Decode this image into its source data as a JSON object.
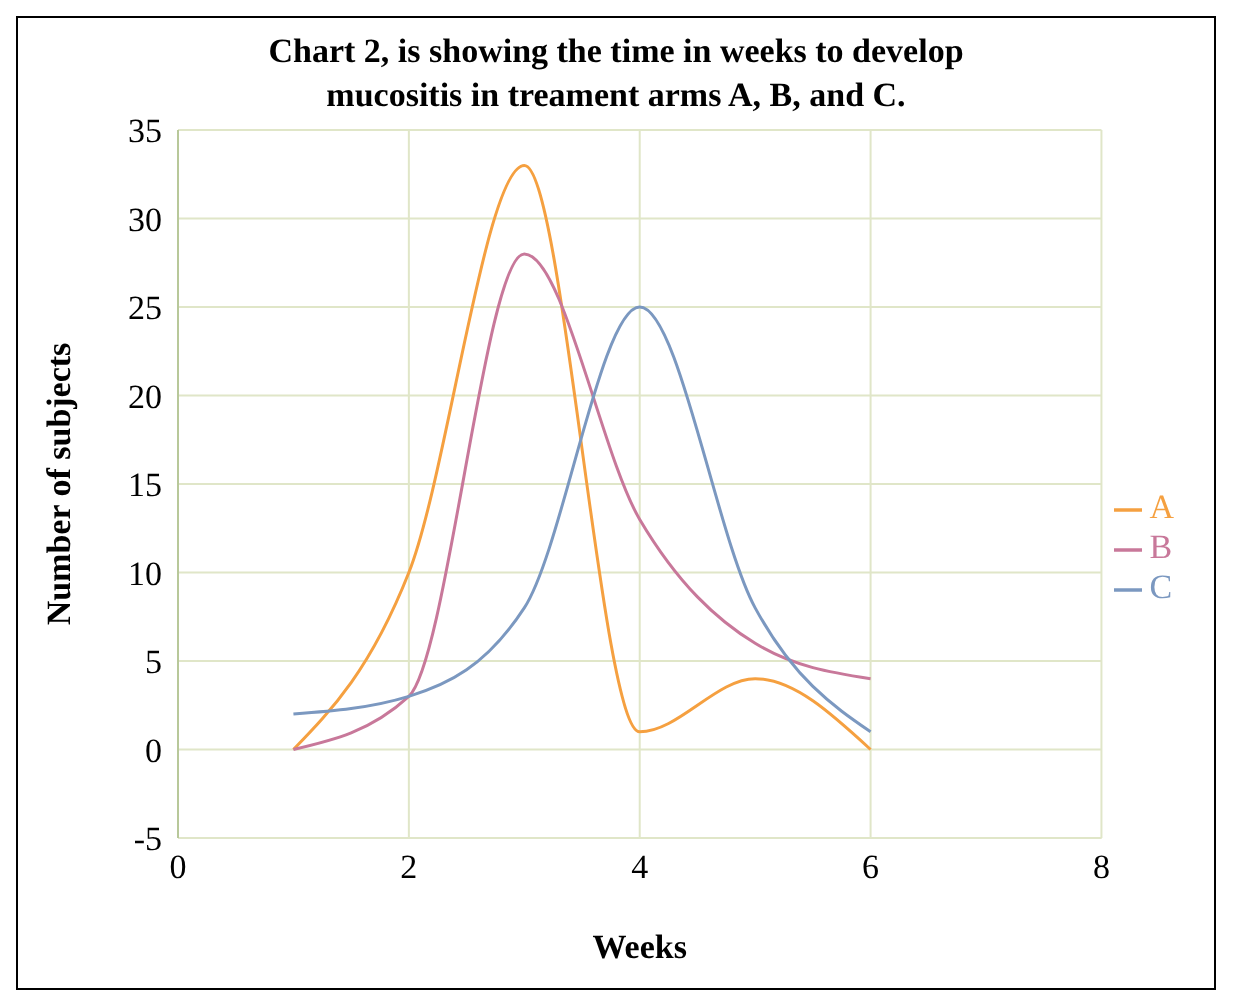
{
  "chart_data": {
    "type": "line",
    "title": "Chart 2, is showing the time in weeks to develop mucositis in treament arms A, B, and C.",
    "xlabel": "Weeks",
    "ylabel": "Number of subjects",
    "x": [
      1,
      2,
      3,
      4,
      5,
      6
    ],
    "series": [
      {
        "name": "A",
        "color": "#f5a040",
        "values": [
          0,
          10,
          33,
          1,
          4,
          0
        ]
      },
      {
        "name": "B",
        "color": "#c8789a",
        "values": [
          0,
          3,
          28,
          13,
          6,
          4
        ]
      },
      {
        "name": "C",
        "color": "#7b98c0",
        "values": [
          2,
          3,
          8,
          25,
          8,
          1
        ]
      }
    ],
    "xlim": [
      0,
      8
    ],
    "xticks": [
      0,
      2,
      4,
      6,
      8
    ],
    "ylim": [
      -5,
      35
    ],
    "yticks": [
      -5,
      0,
      5,
      10,
      15,
      20,
      25,
      30,
      35
    ],
    "grid": true,
    "legend": "right",
    "marker": "none",
    "line_style": "solid"
  }
}
